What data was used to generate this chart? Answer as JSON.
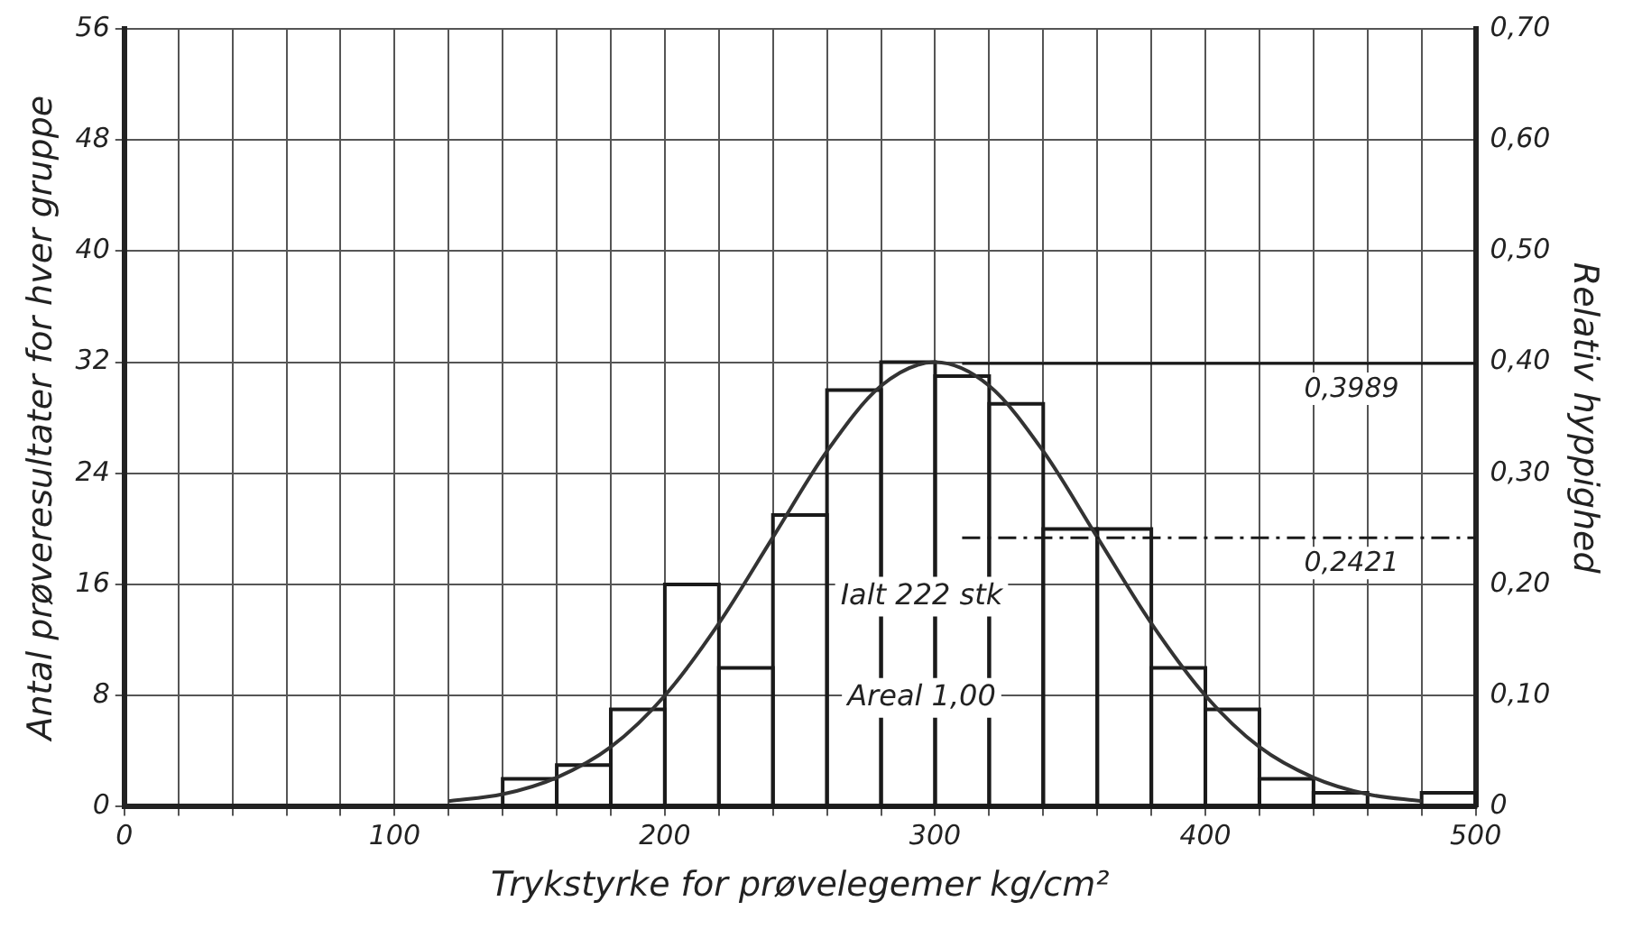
{
  "chart_data": {
    "type": "histogram",
    "xlabel": "Trykstyrke for prøvelegemer kg/cm²",
    "ylabel": "Antal prøveresultater for hver gruppe",
    "y2label": "Relativ hyppighed",
    "bins": [
      140,
      160,
      180,
      200,
      220,
      240,
      260,
      280,
      300,
      320,
      340,
      360,
      380,
      400,
      420,
      440,
      460,
      480,
      500
    ],
    "values": [
      2,
      3,
      7,
      16,
      10,
      21,
      30,
      32,
      31,
      29,
      20,
      20,
      10,
      7,
      2,
      1,
      0,
      1
    ],
    "color": "#1a1a1a",
    "series": [
      {
        "type": "line",
        "color": "#333333",
        "x": [
          120,
          140,
          160,
          180,
          200,
          220,
          240,
          260,
          280,
          300,
          320,
          340,
          360,
          380,
          400,
          420,
          440,
          460,
          480
        ],
        "values": [
          0.4,
          0.9,
          2.1,
          4.3,
          8,
          13.2,
          19.4,
          25.6,
          30.3,
          32,
          30.3,
          25.6,
          19.4,
          13.2,
          8,
          4.3,
          2.1,
          0.9,
          0.4
        ]
      }
    ],
    "xlim": [
      0,
      500
    ],
    "xticks": [
      0,
      {
        "value": 20,
        "label": null
      },
      {
        "value": 40,
        "label": null
      },
      {
        "value": 60,
        "label": null
      },
      {
        "value": 80,
        "label": null
      },
      100,
      {
        "value": 120,
        "label": null
      },
      {
        "value": 140,
        "label": null
      },
      {
        "value": 160,
        "label": null
      },
      {
        "value": 180,
        "label": null
      },
      200,
      {
        "value": 220,
        "label": null
      },
      {
        "value": 240,
        "label": null
      },
      {
        "value": 260,
        "label": null
      },
      {
        "value": 280,
        "label": null
      },
      300,
      {
        "value": 320,
        "label": null
      },
      {
        "value": 340,
        "label": null
      },
      {
        "value": 360,
        "label": null
      },
      {
        "value": 380,
        "label": null
      },
      400,
      {
        "value": 420,
        "label": null
      },
      {
        "value": 440,
        "label": null
      },
      {
        "value": 460,
        "label": null
      },
      {
        "value": 480,
        "label": null
      },
      500
    ],
    "ylim": [
      0,
      56
    ],
    "yticks": [
      0,
      8,
      16,
      24,
      32,
      40,
      48,
      56
    ],
    "y2lim": [
      0,
      0.7
    ],
    "y2ticks": [
      0,
      {
        "value": 0.1,
        "label": "0,10"
      },
      {
        "value": 0.2,
        "label": "0,20"
      },
      {
        "value": 0.3,
        "label": "0,30"
      },
      {
        "value": 0.4,
        "label": "0,40"
      },
      {
        "value": 0.5,
        "label": "0,50"
      },
      {
        "value": 0.6,
        "label": "0,60"
      },
      {
        "value": 0.7,
        "label": "0,70"
      }
    ],
    "ref_lines": [
      {
        "axis": "y2",
        "value": 0.3989,
        "label": "0,3989",
        "line_style": "solid"
      },
      {
        "axis": "y2",
        "value": 0.2421,
        "label": "0,2421",
        "line_style": "dashed"
      }
    ],
    "annotations": [
      "Ialt 222 stk",
      "Areal 1,00"
    ],
    "grid": true,
    "legend": false,
    "marker": "none",
    "line_style": "solid"
  }
}
